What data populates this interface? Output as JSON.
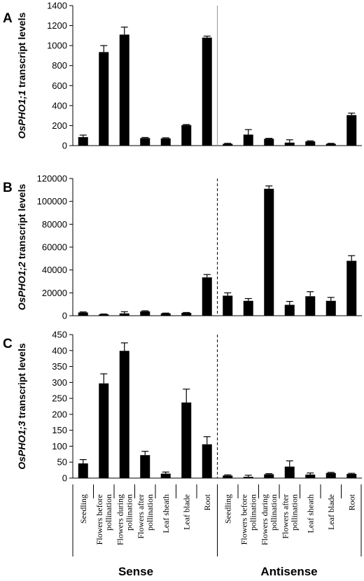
{
  "categories": [
    "Seedling",
    "Flowers before|pollination",
    "Flowers during|pollination",
    "Flowers after|pollination",
    "Leaf sheath",
    "Leaf blade",
    "Root",
    "Seedling",
    "Flowers before|pollination",
    "Flowers during|pollination",
    "Flowers after|pollination",
    "Leaf sheath",
    "Leaf blade",
    "Root"
  ],
  "groups": [
    "Sense",
    "Antisense"
  ],
  "chart_data": [
    {
      "type": "bar",
      "panel": "A",
      "ylabel_italic": "OsPHO1;1",
      "ylabel_rest": " transcript levels",
      "ylim": [
        0,
        1400
      ],
      "yticks": [
        0,
        200,
        400,
        600,
        800,
        1000,
        1200,
        1400
      ],
      "divider": "solid",
      "values": [
        85,
        935,
        1110,
        75,
        72,
        205,
        1080,
        18,
        110,
        68,
        30,
        42,
        18,
        305
      ],
      "errors": [
        20,
        65,
        75,
        6,
        6,
        6,
        15,
        5,
        50,
        5,
        28,
        6,
        5,
        20
      ]
    },
    {
      "type": "bar",
      "panel": "B",
      "ylabel_italic": "OsPHO1;2",
      "ylabel_rest": " transcript levels",
      "ylim": [
        0,
        120000
      ],
      "yticks": [
        0,
        20000,
        40000,
        60000,
        80000,
        100000,
        120000
      ],
      "divider": "dashed",
      "values": [
        2800,
        1200,
        2000,
        3800,
        2000,
        2500,
        33500,
        17500,
        13000,
        111000,
        9500,
        17000,
        13000,
        48000
      ],
      "errors": [
        500,
        300,
        1500,
        500,
        300,
        300,
        2500,
        2500,
        2000,
        2500,
        3000,
        4000,
        3000,
        4500
      ]
    },
    {
      "type": "bar",
      "panel": "C",
      "ylabel_italic": "OsPHO1;3",
      "ylabel_rest": " transcript levels",
      "ylim": [
        0,
        450
      ],
      "yticks": [
        0,
        50,
        100,
        150,
        200,
        250,
        300,
        350,
        400,
        450
      ],
      "divider": "dashed",
      "values": [
        46,
        297,
        399,
        72,
        14,
        237,
        106,
        8,
        4,
        12,
        36,
        11,
        16,
        13
      ],
      "errors": [
        12,
        30,
        25,
        12,
        5,
        42,
        24,
        2,
        5,
        2,
        18,
        5,
        2,
        2
      ]
    }
  ]
}
